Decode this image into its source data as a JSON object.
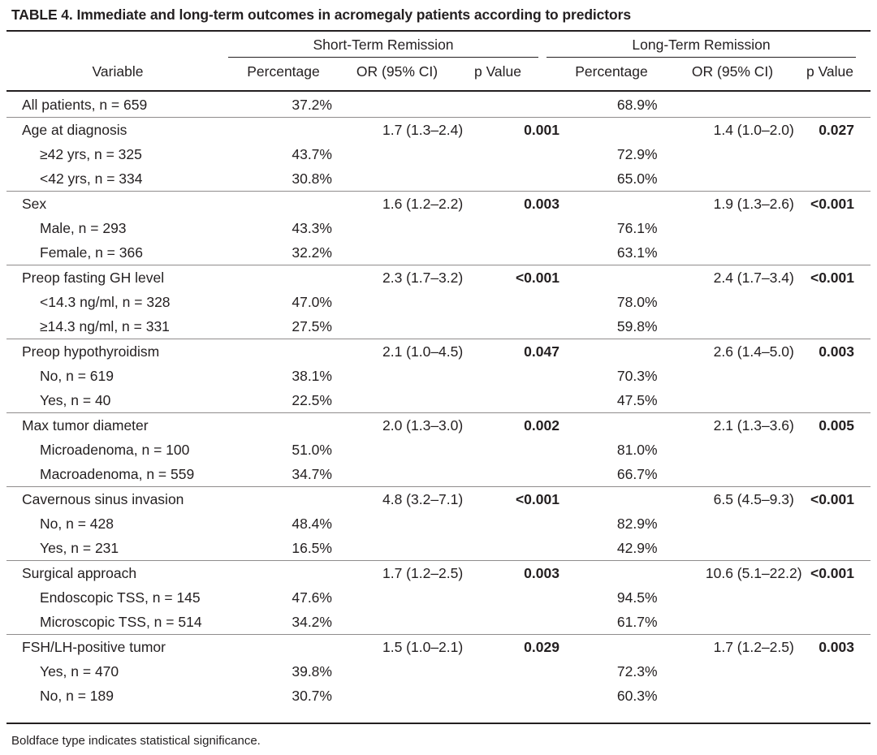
{
  "title": "TABLE 4. Immediate and long-term outcomes in acromegaly patients according to predictors",
  "header": {
    "short_term": "Short-Term Remission",
    "long_term": "Long-Term Remission",
    "variable": "Variable",
    "percentage": "Percentage",
    "or": "OR (95% CI)",
    "p": "p Value"
  },
  "rows": [
    {
      "var": "All patients, n = 659",
      "sub": false,
      "st_pct": "37.2%",
      "st_or": "",
      "st_p": "",
      "st_bold": false,
      "lt_pct": "68.9%",
      "lt_or": "",
      "lt_p": "",
      "lt_bold": false
    },
    {
      "var": "Age at diagnosis",
      "sub": false,
      "st_pct": "",
      "st_or": "1.7 (1.3–2.4)",
      "st_p": "0.001",
      "st_bold": true,
      "lt_pct": "",
      "lt_or": "1.4 (1.0–2.0)",
      "lt_p": "0.027",
      "lt_bold": true
    },
    {
      "var": "≥42 yrs, n = 325",
      "sub": true,
      "st_pct": "43.7%",
      "st_or": "",
      "st_p": "",
      "st_bold": false,
      "lt_pct": "72.9%",
      "lt_or": "",
      "lt_p": "",
      "lt_bold": false
    },
    {
      "var": "<42 yrs, n = 334",
      "sub": true,
      "st_pct": "30.8%",
      "st_or": "",
      "st_p": "",
      "st_bold": false,
      "lt_pct": "65.0%",
      "lt_or": "",
      "lt_p": "",
      "lt_bold": false
    },
    {
      "var": "Sex",
      "sub": false,
      "st_pct": "",
      "st_or": "1.6 (1.2–2.2)",
      "st_p": "0.003",
      "st_bold": true,
      "lt_pct": "",
      "lt_or": "1.9 (1.3–2.6)",
      "lt_p": "<0.001",
      "lt_bold": true
    },
    {
      "var": "Male, n = 293",
      "sub": true,
      "st_pct": "43.3%",
      "st_or": "",
      "st_p": "",
      "st_bold": false,
      "lt_pct": "76.1%",
      "lt_or": "",
      "lt_p": "",
      "lt_bold": false
    },
    {
      "var": "Female, n = 366",
      "sub": true,
      "st_pct": "32.2%",
      "st_or": "",
      "st_p": "",
      "st_bold": false,
      "lt_pct": "63.1%",
      "lt_or": "",
      "lt_p": "",
      "lt_bold": false
    },
    {
      "var": "Preop fasting GH level",
      "sub": false,
      "st_pct": "",
      "st_or": "2.3 (1.7–3.2)",
      "st_p": "<0.001",
      "st_bold": true,
      "lt_pct": "",
      "lt_or": "2.4 (1.7–3.4)",
      "lt_p": "<0.001",
      "lt_bold": true
    },
    {
      "var": "<14.3 ng/ml, n = 328",
      "sub": true,
      "st_pct": "47.0%",
      "st_or": "",
      "st_p": "",
      "st_bold": false,
      "lt_pct": "78.0%",
      "lt_or": "",
      "lt_p": "",
      "lt_bold": false
    },
    {
      "var": "≥14.3 ng/ml, n = 331",
      "sub": true,
      "st_pct": "27.5%",
      "st_or": "",
      "st_p": "",
      "st_bold": false,
      "lt_pct": "59.8%",
      "lt_or": "",
      "lt_p": "",
      "lt_bold": false
    },
    {
      "var": "Preop hypothyroidism",
      "sub": false,
      "st_pct": "",
      "st_or": "2.1 (1.0–4.5)",
      "st_p": "0.047",
      "st_bold": true,
      "lt_pct": "",
      "lt_or": "2.6 (1.4–5.0)",
      "lt_p": "0.003",
      "lt_bold": true
    },
    {
      "var": "No, n = 619",
      "sub": true,
      "st_pct": "38.1%",
      "st_or": "",
      "st_p": "",
      "st_bold": false,
      "lt_pct": "70.3%",
      "lt_or": "",
      "lt_p": "",
      "lt_bold": false
    },
    {
      "var": "Yes, n = 40",
      "sub": true,
      "st_pct": "22.5%",
      "st_or": "",
      "st_p": "",
      "st_bold": false,
      "lt_pct": "47.5%",
      "lt_or": "",
      "lt_p": "",
      "lt_bold": false
    },
    {
      "var": "Max tumor diameter",
      "sub": false,
      "st_pct": "",
      "st_or": "2.0 (1.3–3.0)",
      "st_p": "0.002",
      "st_bold": true,
      "lt_pct": "",
      "lt_or": "2.1 (1.3–3.6)",
      "lt_p": "0.005",
      "lt_bold": true
    },
    {
      "var": "Microadenoma, n = 100",
      "sub": true,
      "st_pct": "51.0%",
      "st_or": "",
      "st_p": "",
      "st_bold": false,
      "lt_pct": "81.0%",
      "lt_or": "",
      "lt_p": "",
      "lt_bold": false
    },
    {
      "var": "Macroadenoma, n = 559",
      "sub": true,
      "st_pct": "34.7%",
      "st_or": "",
      "st_p": "",
      "st_bold": false,
      "lt_pct": "66.7%",
      "lt_or": "",
      "lt_p": "",
      "lt_bold": false
    },
    {
      "var": "Cavernous sinus invasion",
      "sub": false,
      "st_pct": "",
      "st_or": "4.8 (3.2–7.1)",
      "st_p": "<0.001",
      "st_bold": true,
      "lt_pct": "",
      "lt_or": "6.5 (4.5–9.3)",
      "lt_p": "<0.001",
      "lt_bold": true
    },
    {
      "var": "No, n = 428",
      "sub": true,
      "st_pct": "48.4%",
      "st_or": "",
      "st_p": "",
      "st_bold": false,
      "lt_pct": "82.9%",
      "lt_or": "",
      "lt_p": "",
      "lt_bold": false
    },
    {
      "var": "Yes, n = 231",
      "sub": true,
      "st_pct": "16.5%",
      "st_or": "",
      "st_p": "",
      "st_bold": false,
      "lt_pct": "42.9%",
      "lt_or": "",
      "lt_p": "",
      "lt_bold": false
    },
    {
      "var": "Surgical approach",
      "sub": false,
      "st_pct": "",
      "st_or": "1.7 (1.2–2.5)",
      "st_p": "0.003",
      "st_bold": true,
      "lt_pct": "",
      "lt_or": "10.6 (5.1–22.2)",
      "lt_p": "<0.001",
      "lt_bold": true
    },
    {
      "var": "Endoscopic TSS, n = 145",
      "sub": true,
      "st_pct": "47.6%",
      "st_or": "",
      "st_p": "",
      "st_bold": false,
      "lt_pct": "94.5%",
      "lt_or": "",
      "lt_p": "",
      "lt_bold": false
    },
    {
      "var": "Microscopic TSS, n = 514",
      "sub": true,
      "st_pct": "34.2%",
      "st_or": "",
      "st_p": "",
      "st_bold": false,
      "lt_pct": "61.7%",
      "lt_or": "",
      "lt_p": "",
      "lt_bold": false
    },
    {
      "var": "FSH/LH-positive tumor",
      "sub": false,
      "st_pct": "",
      "st_or": "1.5 (1.0–2.1)",
      "st_p": "0.029",
      "st_bold": true,
      "lt_pct": "",
      "lt_or": "1.7 (1.2–2.5)",
      "lt_p": "0.003",
      "lt_bold": true
    },
    {
      "var": "Yes, n = 470",
      "sub": true,
      "st_pct": "39.8%",
      "st_or": "",
      "st_p": "",
      "st_bold": false,
      "lt_pct": "72.3%",
      "lt_or": "",
      "lt_p": "",
      "lt_bold": false
    },
    {
      "var": "No, n = 189",
      "sub": true,
      "st_pct": "30.7%",
      "st_or": "",
      "st_p": "",
      "st_bold": false,
      "lt_pct": "60.3%",
      "lt_or": "",
      "lt_p": "",
      "lt_bold": false
    }
  ],
  "footnote": "Boldface type indicates statistical significance."
}
